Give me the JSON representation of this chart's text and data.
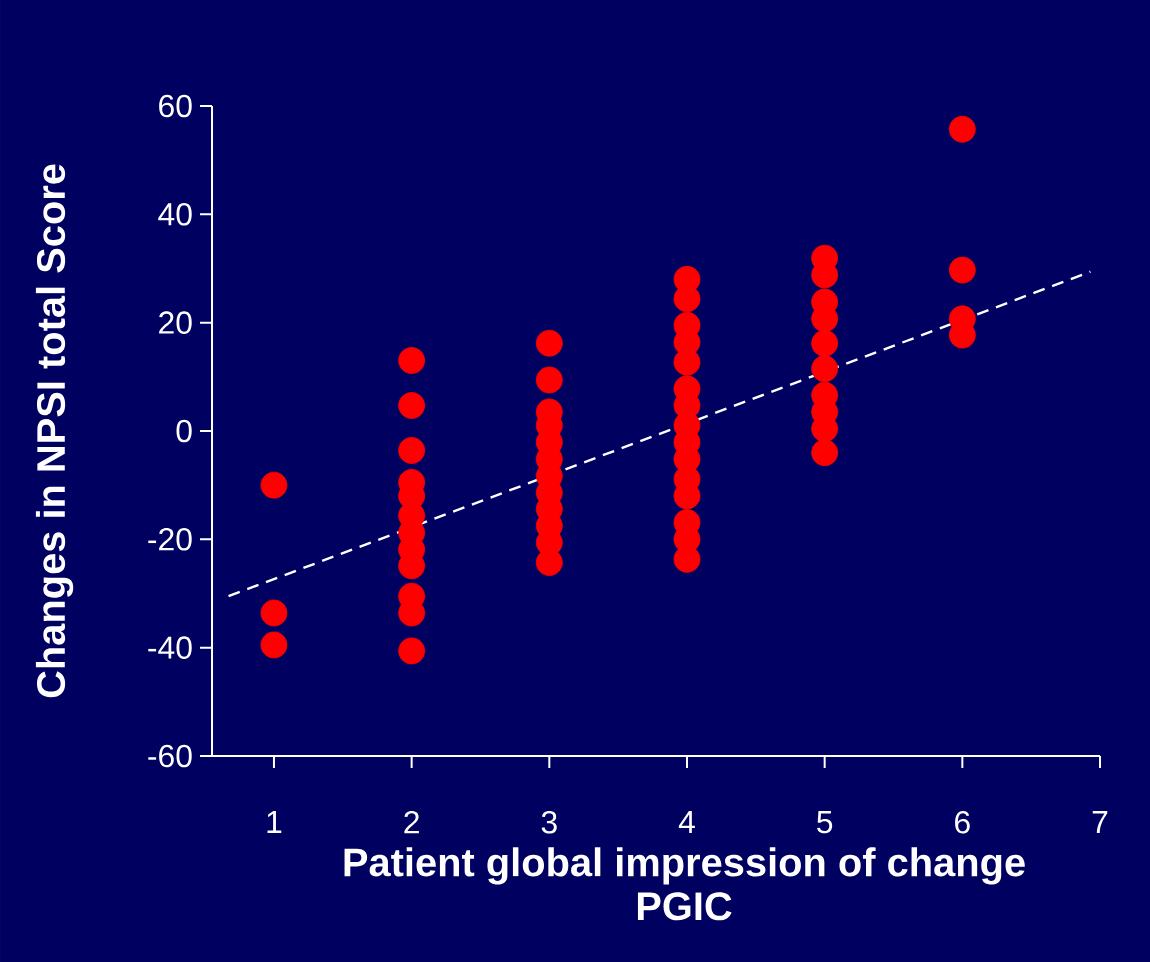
{
  "chart_data": {
    "type": "scatter",
    "xlabel": "Patient global impression of change PGIC",
    "ylabel": "Changes in NPSI total Score",
    "xlim": [
      0.55,
      7
    ],
    "ylim": [
      -60,
      60
    ],
    "xticks": [
      1,
      2,
      3,
      4,
      5,
      6,
      7
    ],
    "yticks": [
      -60,
      -40,
      -20,
      0,
      20,
      40,
      60
    ],
    "grid": false,
    "series": [
      {
        "color": "#ff0000",
        "marker": "circle",
        "x": [
          1,
          1,
          1,
          2,
          2,
          2,
          2,
          2,
          2,
          2,
          2,
          2,
          2,
          2,
          2,
          3,
          3,
          3,
          3,
          3,
          3,
          3,
          3,
          3,
          3,
          3,
          3,
          4,
          4,
          4,
          4,
          4,
          4,
          4,
          4,
          4,
          4,
          4,
          4,
          4,
          4,
          4,
          5,
          5,
          5,
          5,
          5,
          5,
          5,
          5,
          5,
          5,
          6,
          6,
          6,
          6
        ],
        "values": [
          -10,
          -33.6,
          -39.5,
          13,
          4.7,
          -3.6,
          -9.5,
          -12,
          -15.6,
          -18.8,
          -21.9,
          -24.9,
          -30.5,
          -33.6,
          -40.6,
          16.2,
          9.4,
          3.5,
          1,
          -2.1,
          -5.2,
          -8.3,
          -11.4,
          -14.4,
          -17.5,
          -20.6,
          -24.3,
          28,
          24.4,
          19.5,
          16.4,
          12.7,
          7.8,
          4.7,
          1,
          -2.1,
          -5.2,
          -8.9,
          -12,
          -16.9,
          -20,
          -23.7,
          31.9,
          28.8,
          23.8,
          20.7,
          16.2,
          11.5,
          6.6,
          3.5,
          0.4,
          -4,
          55.7,
          29.7,
          20.7,
          17.7
        ]
      },
      {
        "type": "line",
        "color": "#ffffff",
        "line_style": "dashed",
        "marker": "none",
        "x": [
          0.67,
          6.93
        ],
        "values": [
          -30.5,
          29.4
        ]
      }
    ]
  }
}
